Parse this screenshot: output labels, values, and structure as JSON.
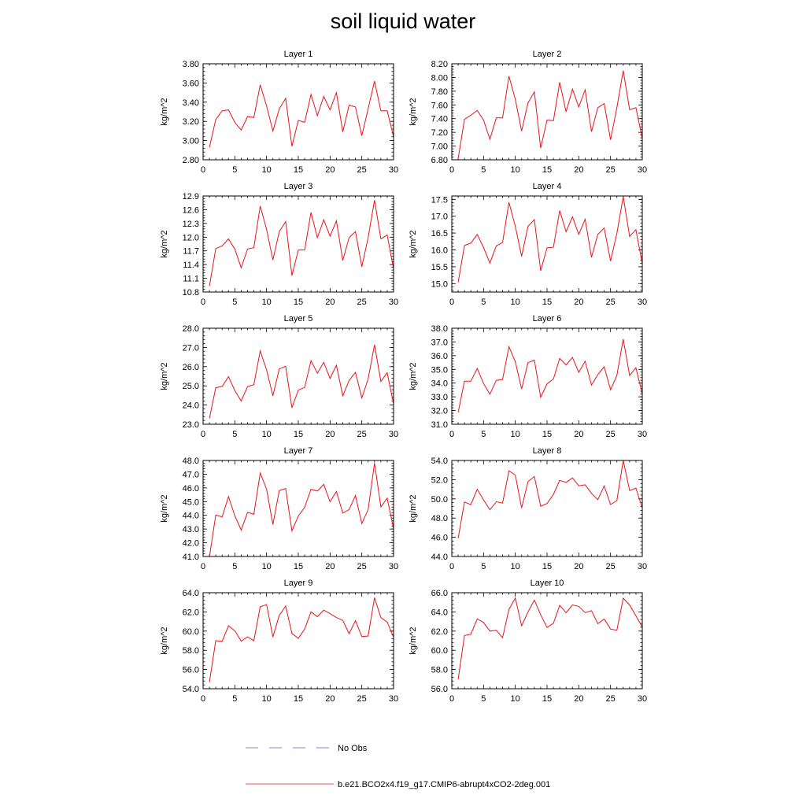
{
  "title": "soil liquid water",
  "legend": {
    "entries": [
      {
        "label": "No Obs",
        "color": "#4a5fd0",
        "dash": true
      },
      {
        "label": "b.e21.BCO2x4.f19_g17.CMIP6-abrupt4xCO2-2deg.001",
        "color": "#e8141a",
        "dash": false
      }
    ]
  },
  "chart_data": [
    {
      "type": "line",
      "title": "Layer 1",
      "ylabel": "kg/m^2",
      "xlim": [
        0,
        30
      ],
      "ylim": [
        2.8,
        3.8
      ],
      "xticks": [
        "0",
        "5",
        "10",
        "15",
        "20",
        "25",
        "30"
      ],
      "yticks": [
        "2.80",
        "3.00",
        "3.20",
        "3.40",
        "3.60",
        "3.80"
      ],
      "x": [
        1,
        2,
        3,
        4,
        5,
        6,
        7,
        8,
        9,
        10,
        11,
        12,
        13,
        14,
        15,
        16,
        17,
        18,
        19,
        20,
        21,
        22,
        23,
        24,
        25,
        26,
        27,
        28,
        29,
        30
      ],
      "values": [
        2.93,
        3.22,
        3.31,
        3.32,
        3.19,
        3.11,
        3.25,
        3.24,
        3.58,
        3.36,
        3.1,
        3.33,
        3.44,
        2.94,
        3.21,
        3.19,
        3.48,
        3.26,
        3.46,
        3.32,
        3.5,
        3.09,
        3.37,
        3.35,
        3.05,
        3.33,
        3.62,
        3.31,
        3.31,
        3.04
      ]
    },
    {
      "type": "line",
      "title": "Layer 2",
      "ylabel": "kg/m^2",
      "xlim": [
        0,
        30
      ],
      "ylim": [
        6.8,
        8.2
      ],
      "xticks": [
        "0",
        "5",
        "10",
        "15",
        "20",
        "25",
        "30"
      ],
      "yticks": [
        "6.80",
        "7.00",
        "7.20",
        "7.40",
        "7.60",
        "7.80",
        "8.00",
        "8.20"
      ],
      "x": [
        1,
        2,
        3,
        4,
        5,
        6,
        7,
        8,
        9,
        10,
        11,
        12,
        13,
        14,
        15,
        16,
        17,
        18,
        19,
        20,
        21,
        22,
        23,
        24,
        25,
        26,
        27,
        28,
        29,
        30
      ],
      "values": [
        6.82,
        7.39,
        7.45,
        7.52,
        7.38,
        7.1,
        7.41,
        7.41,
        8.02,
        7.68,
        7.22,
        7.63,
        7.79,
        6.97,
        7.38,
        7.37,
        7.93,
        7.5,
        7.83,
        7.57,
        7.82,
        7.21,
        7.56,
        7.62,
        7.09,
        7.56,
        8.1,
        7.53,
        7.56,
        7.11
      ]
    },
    {
      "type": "line",
      "title": "Layer 3",
      "ylabel": "kg/m^2",
      "xlim": [
        0,
        30
      ],
      "ylim": [
        10.8,
        12.9
      ],
      "xticks": [
        "0",
        "5",
        "10",
        "15",
        "20",
        "25",
        "30"
      ],
      "yticks": [
        "10.8",
        "11.1",
        "11.4",
        "11.7",
        "12.0",
        "12.3",
        "12.6",
        "12.9"
      ],
      "x": [
        1,
        2,
        3,
        4,
        5,
        6,
        7,
        8,
        9,
        10,
        11,
        12,
        13,
        14,
        15,
        16,
        17,
        18,
        19,
        20,
        21,
        22,
        23,
        24,
        25,
        26,
        27,
        28,
        29,
        30
      ],
      "values": [
        10.93,
        11.75,
        11.81,
        11.96,
        11.74,
        11.33,
        11.74,
        11.77,
        12.68,
        12.17,
        11.5,
        12.12,
        12.34,
        11.16,
        11.72,
        11.72,
        12.54,
        11.99,
        12.38,
        12.02,
        12.36,
        11.49,
        11.99,
        12.12,
        11.35,
        11.99,
        12.81,
        11.96,
        12.05,
        11.3
      ]
    },
    {
      "type": "line",
      "title": "Layer 4",
      "ylabel": "kg/m^2",
      "xlim": [
        0,
        30
      ],
      "ylim": [
        14.75,
        17.6
      ],
      "xticks": [
        "0",
        "5",
        "10",
        "15",
        "20",
        "25",
        "30"
      ],
      "yticks": [
        "15.0",
        "15.5",
        "16.0",
        "16.5",
        "17.0",
        "17.5"
      ],
      "x": [
        1,
        2,
        3,
        4,
        5,
        6,
        7,
        8,
        9,
        10,
        11,
        12,
        13,
        14,
        15,
        16,
        17,
        18,
        19,
        20,
        21,
        22,
        23,
        24,
        25,
        26,
        27,
        28,
        29,
        30
      ],
      "values": [
        15.04,
        16.13,
        16.2,
        16.46,
        16.07,
        15.61,
        16.12,
        16.22,
        17.41,
        16.7,
        15.81,
        16.7,
        16.9,
        15.38,
        16.06,
        16.08,
        17.17,
        16.54,
        16.98,
        16.46,
        16.91,
        15.78,
        16.46,
        16.65,
        15.67,
        16.49,
        17.58,
        16.4,
        16.6,
        15.59
      ]
    },
    {
      "type": "line",
      "title": "Layer 5",
      "ylabel": "kg/m^2",
      "xlim": [
        0,
        30
      ],
      "ylim": [
        23.0,
        28.0
      ],
      "xticks": [
        "0",
        "5",
        "10",
        "15",
        "20",
        "25",
        "30"
      ],
      "yticks": [
        "23.0",
        "24.0",
        "25.0",
        "26.0",
        "27.0",
        "28.0"
      ],
      "x": [
        1,
        2,
        3,
        4,
        5,
        6,
        7,
        8,
        9,
        10,
        11,
        12,
        13,
        14,
        15,
        16,
        17,
        18,
        19,
        20,
        21,
        22,
        23,
        24,
        25,
        26,
        27,
        28,
        29,
        30
      ],
      "values": [
        23.31,
        24.9,
        24.97,
        25.48,
        24.76,
        24.21,
        24.96,
        25.06,
        26.82,
        25.83,
        24.48,
        25.88,
        26.02,
        23.86,
        24.78,
        24.92,
        26.31,
        25.66,
        26.22,
        25.38,
        26.07,
        24.48,
        25.28,
        25.7,
        24.37,
        25.36,
        27.14,
        25.23,
        25.68,
        24.06
      ]
    },
    {
      "type": "line",
      "title": "Layer 6",
      "ylabel": "kg/m^2",
      "xlim": [
        0,
        30
      ],
      "ylim": [
        31.0,
        38.0
      ],
      "xticks": [
        "0",
        "5",
        "10",
        "15",
        "20",
        "25",
        "30"
      ],
      "yticks": [
        "31.0",
        "32.0",
        "33.0",
        "34.0",
        "35.0",
        "36.0",
        "37.0",
        "38.0"
      ],
      "x": [
        1,
        2,
        3,
        4,
        5,
        6,
        7,
        8,
        9,
        10,
        11,
        12,
        13,
        14,
        15,
        16,
        17,
        18,
        19,
        20,
        21,
        22,
        23,
        24,
        25,
        26,
        27,
        28,
        29,
        30
      ],
      "values": [
        31.87,
        34.14,
        34.14,
        35.07,
        33.97,
        33.19,
        34.2,
        34.26,
        36.66,
        35.56,
        33.57,
        35.49,
        35.67,
        32.97,
        33.95,
        34.3,
        35.8,
        35.32,
        35.87,
        34.78,
        35.6,
        33.86,
        34.62,
        35.19,
        33.51,
        34.56,
        37.21,
        34.56,
        35.12,
        33.22
      ]
    },
    {
      "type": "line",
      "title": "Layer 7",
      "ylabel": "kg/m^2",
      "xlim": [
        0,
        30
      ],
      "ylim": [
        41.0,
        48.0
      ],
      "xticks": [
        "0",
        "5",
        "10",
        "15",
        "20",
        "25",
        "30"
      ],
      "yticks": [
        "41.0",
        "42.0",
        "43.0",
        "44.0",
        "45.0",
        "46.0",
        "47.0",
        "48.0"
      ],
      "x": [
        1,
        2,
        3,
        4,
        5,
        6,
        7,
        8,
        9,
        10,
        11,
        12,
        13,
        14,
        15,
        16,
        17,
        18,
        19,
        20,
        21,
        22,
        23,
        24,
        25,
        26,
        27,
        28,
        29,
        30
      ],
      "values": [
        40.98,
        44.02,
        43.89,
        45.36,
        43.98,
        42.92,
        44.22,
        44.08,
        47.08,
        45.9,
        43.33,
        45.8,
        45.95,
        42.87,
        43.95,
        44.59,
        45.9,
        45.77,
        46.26,
        44.99,
        45.74,
        44.16,
        44.42,
        45.44,
        43.4,
        44.42,
        47.81,
        44.61,
        45.25,
        43.03
      ]
    },
    {
      "type": "line",
      "title": "Layer 8",
      "ylabel": "kg/m^2",
      "xlim": [
        0,
        30
      ],
      "ylim": [
        44.0,
        54.0
      ],
      "xticks": [
        "0",
        "5",
        "10",
        "15",
        "20",
        "25",
        "30"
      ],
      "yticks": [
        "44.0",
        "46.0",
        "48.0",
        "50.0",
        "52.0",
        "54.0"
      ],
      "x": [
        1,
        2,
        3,
        4,
        5,
        6,
        7,
        8,
        9,
        10,
        11,
        12,
        13,
        14,
        15,
        16,
        17,
        18,
        19,
        20,
        21,
        22,
        23,
        24,
        25,
        26,
        27,
        28,
        29,
        30
      ],
      "values": [
        45.92,
        49.67,
        49.4,
        51.0,
        49.9,
        48.86,
        49.7,
        49.56,
        52.93,
        52.48,
        49.06,
        51.79,
        52.33,
        49.23,
        49.52,
        50.46,
        51.93,
        51.72,
        52.18,
        51.36,
        51.47,
        50.57,
        49.92,
        51.35,
        49.41,
        49.82,
        54.0,
        50.87,
        51.12,
        49.05
      ]
    },
    {
      "type": "line",
      "title": "Layer 9",
      "ylabel": "kg/m^2",
      "xlim": [
        0,
        30
      ],
      "ylim": [
        54.0,
        64.0
      ],
      "xticks": [
        "0",
        "5",
        "10",
        "15",
        "20",
        "25",
        "30"
      ],
      "yticks": [
        "54.0",
        "56.0",
        "58.0",
        "60.0",
        "62.0",
        "64.0"
      ],
      "x": [
        1,
        2,
        3,
        4,
        5,
        6,
        7,
        8,
        9,
        10,
        11,
        12,
        13,
        14,
        15,
        16,
        17,
        18,
        19,
        20,
        21,
        22,
        23,
        24,
        25,
        26,
        27,
        28,
        29,
        30
      ],
      "values": [
        54.7,
        59.01,
        58.93,
        60.55,
        60.04,
        58.96,
        59.4,
        58.99,
        62.54,
        62.76,
        59.39,
        61.63,
        62.61,
        59.76,
        59.25,
        60.21,
        62.01,
        61.51,
        62.19,
        61.82,
        61.41,
        61.12,
        59.73,
        61.09,
        59.43,
        59.49,
        63.48,
        61.4,
        60.94,
        59.37
      ]
    },
    {
      "type": "line",
      "title": "Layer 10",
      "ylabel": "kg/m^2",
      "xlim": [
        0,
        30
      ],
      "ylim": [
        56.0,
        66.0
      ],
      "xticks": [
        "0",
        "5",
        "10",
        "15",
        "20",
        "25",
        "30"
      ],
      "yticks": [
        "56.0",
        "58.0",
        "60.0",
        "62.0",
        "64.0",
        "66.0"
      ],
      "x": [
        1,
        2,
        3,
        4,
        5,
        6,
        7,
        8,
        9,
        10,
        11,
        12,
        13,
        14,
        15,
        16,
        17,
        18,
        19,
        20,
        21,
        22,
        23,
        24,
        25,
        26,
        27,
        28,
        29,
        30
      ],
      "values": [
        57.0,
        61.54,
        61.68,
        63.27,
        62.9,
        62.0,
        62.08,
        61.31,
        64.26,
        65.45,
        62.55,
        63.98,
        65.23,
        63.7,
        62.38,
        62.82,
        64.68,
        63.91,
        64.73,
        64.57,
        63.93,
        64.13,
        62.76,
        63.26,
        62.21,
        62.09,
        65.42,
        64.72,
        63.59,
        62.43
      ]
    }
  ]
}
